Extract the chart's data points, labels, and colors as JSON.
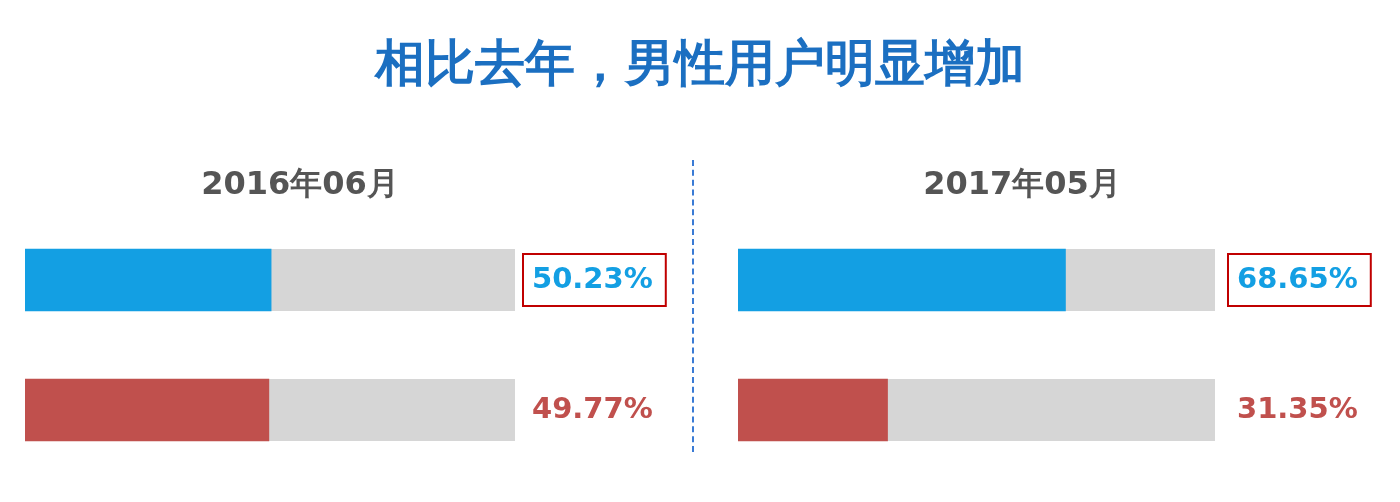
{
  "chart_data": [
    {
      "type": "bar",
      "orientation": "horizontal",
      "title": "相比去年，男性用户明显增加",
      "subtitle": "2016年06月",
      "categories": [
        null,
        null
      ],
      "values": [
        50.23,
        49.77
      ],
      "colors": [
        "#139fe3",
        "#c0504d"
      ],
      "value_labels": [
        "50.23%",
        "49.77%"
      ],
      "xlim": [
        0,
        100
      ],
      "tick_labels": false
    },
    {
      "type": "bar",
      "orientation": "horizontal",
      "subtitle": "2017年05月",
      "categories": [
        null,
        null
      ],
      "values": [
        68.65,
        31.35
      ],
      "colors": [
        "#139fe3",
        "#c0504d"
      ],
      "value_labels": [
        "68.65%",
        "31.35%"
      ],
      "xlim": [
        0,
        100
      ],
      "tick_labels": false
    }
  ]
}
